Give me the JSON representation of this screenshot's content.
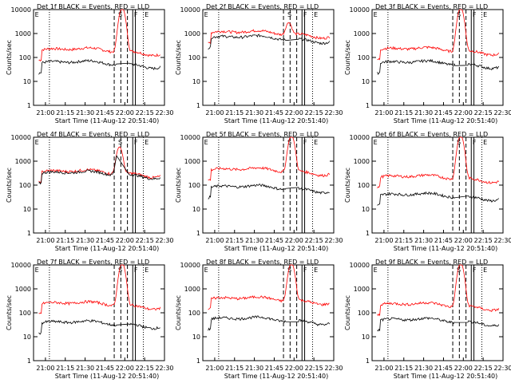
{
  "chart_data": [
    {
      "type": "line",
      "title": "Det 1f BLACK = Events, RED = LLD",
      "ylabel": "Counts/sec",
      "xlabel": "Start Time (11-Aug-12 20:51:40)",
      "x_ticks": [
        "21:00",
        "21:15",
        "21:30",
        "21:45",
        "22:00",
        "22:15",
        "22:30"
      ],
      "y_ticks": [
        "1",
        "10",
        "100",
        "1000",
        "10000"
      ],
      "ylim": [
        1,
        10000
      ],
      "y_scale": "log",
      "markers": [
        "E",
        "S",
        "F",
        "E"
      ],
      "series": [
        {
          "color": "#ff0000",
          "base": 190,
          "peak": 12000,
          "peak_time": "21:58"
        },
        {
          "color": "#000000",
          "base": 55,
          "peak": 55,
          "peak_time": "21:58"
        }
      ]
    },
    {
      "type": "line",
      "title": "Det 2f BLACK = Events, RED = LLD",
      "ylabel": "Counts/sec",
      "xlabel": "Start Time (11-Aug-12 20:51:40)",
      "x_ticks": [
        "21:00",
        "21:15",
        "21:30",
        "21:45",
        "22:00",
        "22:15",
        "22:30"
      ],
      "y_ticks": [
        "1",
        "10",
        "100",
        "1000",
        "10000"
      ],
      "ylim": [
        1,
        10000
      ],
      "y_scale": "log",
      "markers": [
        "E",
        "S",
        "F",
        "E"
      ],
      "series": [
        {
          "color": "#ff0000",
          "base": 1000,
          "peak": 3000,
          "peak_time": "21:56"
        },
        {
          "color": "#000000",
          "base": 620,
          "peak": 620,
          "peak_time": "21:56"
        }
      ]
    },
    {
      "type": "line",
      "title": "Det 3f BLACK = Events, RED = LLD",
      "ylabel": "Counts/sec",
      "xlabel": "Start Time (11-Aug-12 20:51:40)",
      "x_ticks": [
        "21:00",
        "21:15",
        "21:30",
        "21:45",
        "22:00",
        "22:15",
        "22:30"
      ],
      "y_ticks": [
        "1",
        "10",
        "100",
        "1000",
        "10000"
      ],
      "ylim": [
        1,
        10000
      ],
      "y_scale": "log",
      "markers": [
        "E",
        "S",
        "F",
        "E"
      ],
      "series": [
        {
          "color": "#ff0000",
          "base": 200,
          "peak": 12000,
          "peak_time": "21:58"
        },
        {
          "color": "#000000",
          "base": 55,
          "peak": 55,
          "peak_time": "21:58"
        }
      ]
    },
    {
      "type": "line",
      "title": "Det 4f BLACK = Events, RED = LLD",
      "ylabel": "Counts/sec",
      "xlabel": "Start Time (11-Aug-12 20:51:40)",
      "x_ticks": [
        "21:00",
        "21:15",
        "21:30",
        "21:45",
        "22:00",
        "22:15",
        "22:30"
      ],
      "y_ticks": [
        "1",
        "10",
        "100",
        "1000",
        "10000"
      ],
      "ylim": [
        1,
        10000
      ],
      "y_scale": "log",
      "markers": [
        "E",
        "S",
        "F",
        "E"
      ],
      "series": [
        {
          "color": "#ff0000",
          "base": 330,
          "peak": 4000,
          "peak_time": "21:56"
        },
        {
          "color": "#000000",
          "base": 290,
          "peak": 3500,
          "peak_time": "21:56"
        }
      ]
    },
    {
      "type": "line",
      "title": "Det 5f BLACK = Events, RED = LLD",
      "ylabel": "Counts/sec",
      "xlabel": "Start Time (11-Aug-12 20:51:40)",
      "x_ticks": [
        "21:00",
        "21:15",
        "21:30",
        "21:45",
        "22:00",
        "22:15",
        "22:30"
      ],
      "y_ticks": [
        "1",
        "10",
        "100",
        "1000",
        "10000"
      ],
      "ylim": [
        1,
        10000
      ],
      "y_scale": "log",
      "markers": [
        "E",
        "S",
        "F",
        "E"
      ],
      "series": [
        {
          "color": "#ff0000",
          "base": 400,
          "peak": 12000,
          "peak_time": "21:58"
        },
        {
          "color": "#000000",
          "base": 75,
          "peak": 75,
          "peak_time": "21:58"
        }
      ]
    },
    {
      "type": "line",
      "title": "Det 6f BLACK = Events, RED = LLD",
      "ylabel": "Counts/sec",
      "xlabel": "Start Time (11-Aug-12 20:51:40)",
      "x_ticks": [
        "21:00",
        "21:15",
        "21:30",
        "21:45",
        "22:00",
        "22:15",
        "22:30"
      ],
      "y_ticks": [
        "1",
        "10",
        "100",
        "1000",
        "10000"
      ],
      "ylim": [
        1,
        10000
      ],
      "y_scale": "log",
      "markers": [
        "E",
        "S",
        "F",
        "E"
      ],
      "series": [
        {
          "color": "#ff0000",
          "base": 200,
          "peak": 12000,
          "peak_time": "21:58"
        },
        {
          "color": "#000000",
          "base": 35,
          "peak": 35,
          "peak_time": "21:58"
        }
      ]
    },
    {
      "type": "line",
      "title": "Det 7f BLACK = Events, RED = LLD",
      "ylabel": "Counts/sec",
      "xlabel": "Start Time (11-Aug-12 20:51:40)",
      "x_ticks": [
        "21:00",
        "21:15",
        "21:30",
        "21:45",
        "22:00",
        "22:15",
        "22:30"
      ],
      "y_ticks": [
        "1",
        "10",
        "100",
        "1000",
        "10000"
      ],
      "ylim": [
        1,
        10000
      ],
      "y_scale": "log",
      "markers": [
        "E",
        "S",
        "F",
        "E"
      ],
      "series": [
        {
          "color": "#ff0000",
          "base": 220,
          "peak": 12000,
          "peak_time": "21:58"
        },
        {
          "color": "#000000",
          "base": 35,
          "peak": 35,
          "peak_time": "21:58"
        }
      ]
    },
    {
      "type": "line",
      "title": "Det 8f BLACK = Events, RED = LLD",
      "ylabel": "Counts/sec",
      "xlabel": "Start Time (11-Aug-12 20:51:40)",
      "x_ticks": [
        "21:00",
        "21:15",
        "21:30",
        "21:45",
        "22:00",
        "22:15",
        "22:30"
      ],
      "y_ticks": [
        "1",
        "10",
        "100",
        "1000",
        "10000"
      ],
      "ylim": [
        1,
        10000
      ],
      "y_scale": "log",
      "markers": [
        "E",
        "S",
        "F",
        "E"
      ],
      "series": [
        {
          "color": "#ff0000",
          "base": 350,
          "peak": 12000,
          "peak_time": "21:58"
        },
        {
          "color": "#000000",
          "base": 50,
          "peak": 50,
          "peak_time": "21:58"
        }
      ]
    },
    {
      "type": "line",
      "title": "Det 9f BLACK = Events, RED = LLD",
      "ylabel": "Counts/sec",
      "xlabel": "Start Time (11-Aug-12 20:51:40)",
      "x_ticks": [
        "21:00",
        "21:15",
        "21:30",
        "21:45",
        "22:00",
        "22:15",
        "22:30"
      ],
      "y_ticks": [
        "1",
        "10",
        "100",
        "1000",
        "10000"
      ],
      "ylim": [
        1,
        10000
      ],
      "y_scale": "log",
      "markers": [
        "E",
        "S",
        "F",
        "E"
      ],
      "series": [
        {
          "color": "#ff0000",
          "base": 200,
          "peak": 12000,
          "peak_time": "21:58"
        },
        {
          "color": "#000000",
          "base": 45,
          "peak": 45,
          "peak_time": "21:58"
        }
      ]
    }
  ]
}
